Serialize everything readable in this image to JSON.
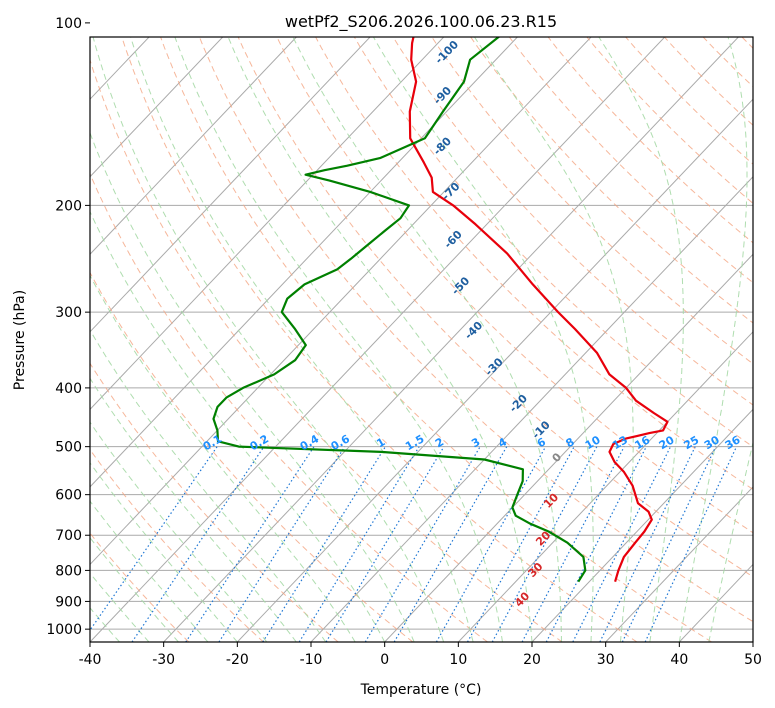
{
  "chart_data": {
    "type": "skew-t",
    "title": "wetPf2_S206.2026.100.06.23.R15",
    "xlabel": "Temperature (°C)",
    "ylabel": "Pressure (hPa)",
    "xlim": [
      -40,
      50
    ],
    "ylim": [
      1050,
      100
    ],
    "y_scale": "log",
    "grid": true,
    "x_ticks": [
      -40,
      -30,
      -20,
      -10,
      0,
      10,
      20,
      30,
      40,
      50
    ],
    "y_ticks": [
      1000,
      900,
      800,
      700,
      600,
      500,
      400,
      300,
      200,
      100
    ],
    "colors": {
      "temperature": "#e8000b",
      "dewpoint": "#008000",
      "isotherm": "#aaaaaa",
      "dry_adiabat": "#f4a582",
      "moist_adiabat": "#a6d9a6",
      "mixing_ratio": "#1f77d4",
      "annotation_dry": "#1f5fa0",
      "annotation_moist": "#d62728",
      "annotation_zero": "#888888",
      "annotation_mixing": "#1e90ff"
    },
    "series": [
      {
        "key": "temperature",
        "points": [
          [
            835,
            23.5
          ],
          [
            800,
            22.5
          ],
          [
            760,
            21.5
          ],
          [
            720,
            21.2
          ],
          [
            690,
            21.0
          ],
          [
            660,
            20.5
          ],
          [
            640,
            19.0
          ],
          [
            620,
            16.5
          ],
          [
            580,
            13.5
          ],
          [
            550,
            10.5
          ],
          [
            530,
            8.0
          ],
          [
            510,
            6.0
          ],
          [
            495,
            5.5
          ],
          [
            485,
            6.5
          ],
          [
            475,
            9.0
          ],
          [
            470,
            10.5
          ],
          [
            455,
            10.0
          ],
          [
            440,
            7.0
          ],
          [
            420,
            3.0
          ],
          [
            400,
            0.0
          ],
          [
            380,
            -4.0
          ],
          [
            350,
            -8.5
          ],
          [
            320,
            -14.5
          ],
          [
            300,
            -19.0
          ],
          [
            270,
            -26.0
          ],
          [
            240,
            -33.5
          ],
          [
            215,
            -41.5
          ],
          [
            200,
            -47.0
          ],
          [
            190,
            -51.5
          ],
          [
            180,
            -53.5
          ],
          [
            170,
            -56.5
          ],
          [
            155,
            -61.5
          ],
          [
            140,
            -65.0
          ],
          [
            125,
            -68.0
          ],
          [
            115,
            -71.5
          ],
          [
            108,
            -73.5
          ],
          [
            100,
            -75.5
          ]
        ]
      },
      {
        "key": "dewpoint",
        "points": [
          [
            835,
            18.5
          ],
          [
            800,
            18.0
          ],
          [
            760,
            16.0
          ],
          [
            720,
            12.0
          ],
          [
            690,
            8.0
          ],
          [
            670,
            4.5
          ],
          [
            650,
            1.5
          ],
          [
            630,
            0.0
          ],
          [
            600,
            -1.0
          ],
          [
            570,
            -2.0
          ],
          [
            545,
            -3.5
          ],
          [
            525,
            -10.0
          ],
          [
            510,
            -25.0
          ],
          [
            500,
            -45.0
          ],
          [
            490,
            -48.5
          ],
          [
            470,
            -50.0
          ],
          [
            450,
            -52.0
          ],
          [
            430,
            -53.0
          ],
          [
            415,
            -53.0
          ],
          [
            400,
            -52.0
          ],
          [
            380,
            -49.5
          ],
          [
            360,
            -48.5
          ],
          [
            340,
            -49.0
          ],
          [
            320,
            -52.5
          ],
          [
            300,
            -56.5
          ],
          [
            285,
            -57.5
          ],
          [
            270,
            -57.0
          ],
          [
            255,
            -54.5
          ],
          [
            245,
            -54.0
          ],
          [
            232,
            -53.5
          ],
          [
            220,
            -53.0
          ],
          [
            210,
            -52.5
          ],
          [
            200,
            -53.0
          ],
          [
            190,
            -60.0
          ],
          [
            182,
            -67.0
          ],
          [
            178,
            -71.0
          ],
          [
            175,
            -69.0
          ],
          [
            172,
            -66.5
          ],
          [
            167,
            -63.0
          ],
          [
            155,
            -59.5
          ],
          [
            140,
            -60.5
          ],
          [
            125,
            -61.5
          ],
          [
            115,
            -63.5
          ],
          [
            105,
            -62.5
          ],
          [
            100,
            -61.5
          ]
        ]
      }
    ],
    "dry_adiabat_labels": [
      {
        "text": "-100",
        "t": -67.5,
        "p": 112
      },
      {
        "text": "-90",
        "t": -62.5,
        "p": 132
      },
      {
        "text": "-80",
        "t": -56.0,
        "p": 160
      },
      {
        "text": "-70",
        "t": -49.0,
        "p": 190
      },
      {
        "text": "-60",
        "t": -42.5,
        "p": 228
      },
      {
        "text": "-50",
        "t": -35.5,
        "p": 272
      },
      {
        "text": "-40",
        "t": -28.0,
        "p": 322
      },
      {
        "text": "-30",
        "t": -20.5,
        "p": 370
      },
      {
        "text": "-20",
        "t": -12.5,
        "p": 425
      },
      {
        "text": "-10",
        "t": -6.0,
        "p": 470
      }
    ],
    "moist_adiabat_labels": [
      {
        "text": "0",
        "t": -0.3,
        "p": 522
      },
      {
        "text": "10",
        "t": 4.5,
        "p": 615
      },
      {
        "text": "20",
        "t": 8.3,
        "p": 710
      },
      {
        "text": "30",
        "t": 11.3,
        "p": 800
      },
      {
        "text": "40",
        "t": 13.3,
        "p": 895
      }
    ],
    "mixing_ratio_labels": [
      "0.1",
      "0.2",
      "0.4",
      "0.6",
      "1",
      "1.5",
      "2",
      "3",
      "4",
      "6",
      "8",
      "10",
      "13",
      "16",
      "20",
      "25",
      "30",
      "36"
    ],
    "mixing_ratio_values": [
      0.1,
      0.2,
      0.4,
      0.6,
      1,
      1.5,
      2,
      3,
      4,
      6,
      8,
      10,
      13,
      16,
      20,
      25,
      30,
      36
    ]
  }
}
